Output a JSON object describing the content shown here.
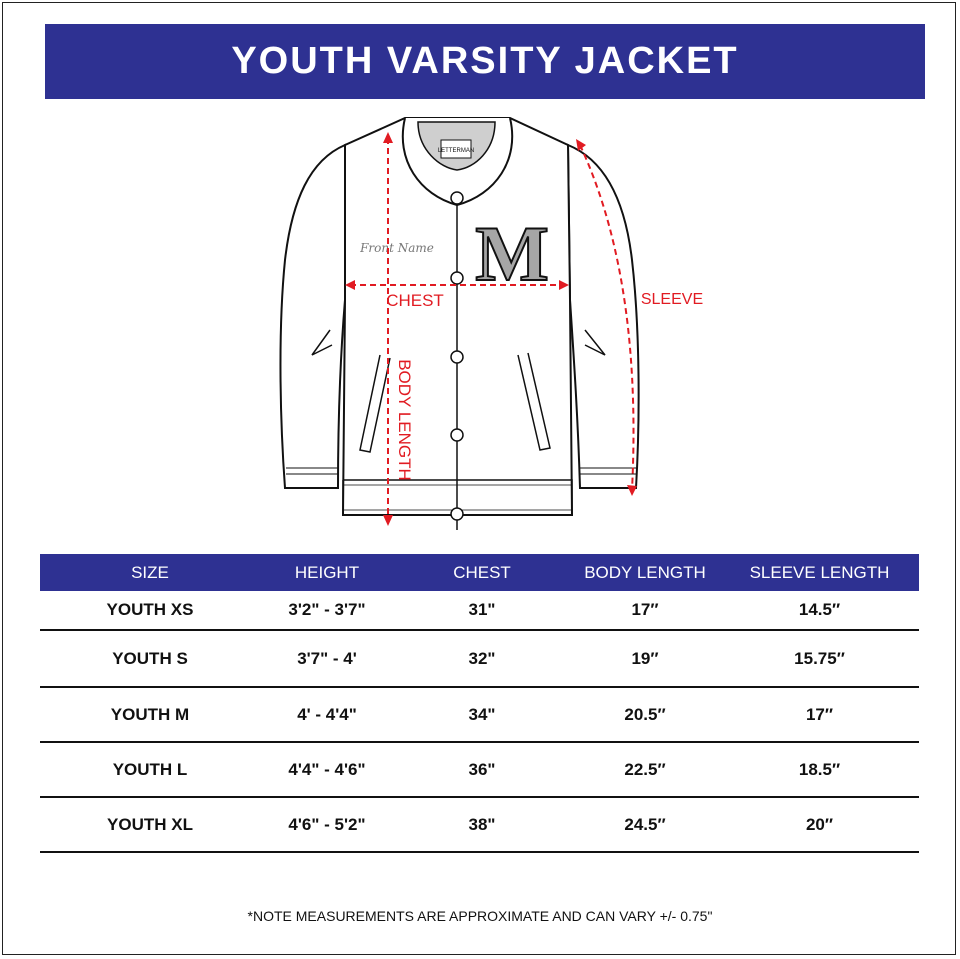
{
  "title": "YOUTH VARSITY JACKET",
  "diagram": {
    "chest_label": "CHEST",
    "sleeve_label": "SLEEVE",
    "body_length_label": "BODY LENGTH",
    "front_name": "Front Name",
    "letter": "M",
    "tag_logo": "LETTERMAN",
    "annotation_color": "#e11b22",
    "letter_color": "#a6a6a6"
  },
  "table": {
    "headers": [
      "SIZE",
      "HEIGHT",
      "CHEST",
      "BODY LENGTH",
      "SLEEVE LENGTH"
    ],
    "rows": [
      [
        "YOUTH XS",
        "3'2\" - 3'7\"",
        "31\"",
        "17″",
        "14.5″"
      ],
      [
        "YOUTH S",
        "3'7\" - 4'",
        "32\"",
        "19″",
        "15.75″"
      ],
      [
        "YOUTH M",
        "4' - 4'4\"",
        "34\"",
        "20.5″",
        "17″"
      ],
      [
        "YOUTH L",
        "4'4\" - 4'6\"",
        "36\"",
        "22.5″",
        "18.5″"
      ],
      [
        "YOUTH XL",
        "4'6\" - 5'2\"",
        "38\"",
        "24.5″",
        "20″"
      ]
    ]
  },
  "note": "*NOTE MEASUREMENTS ARE APPROXIMATE AND CAN VARY +/- 0.75\"",
  "colors": {
    "brand_blue": "#2e3192"
  }
}
